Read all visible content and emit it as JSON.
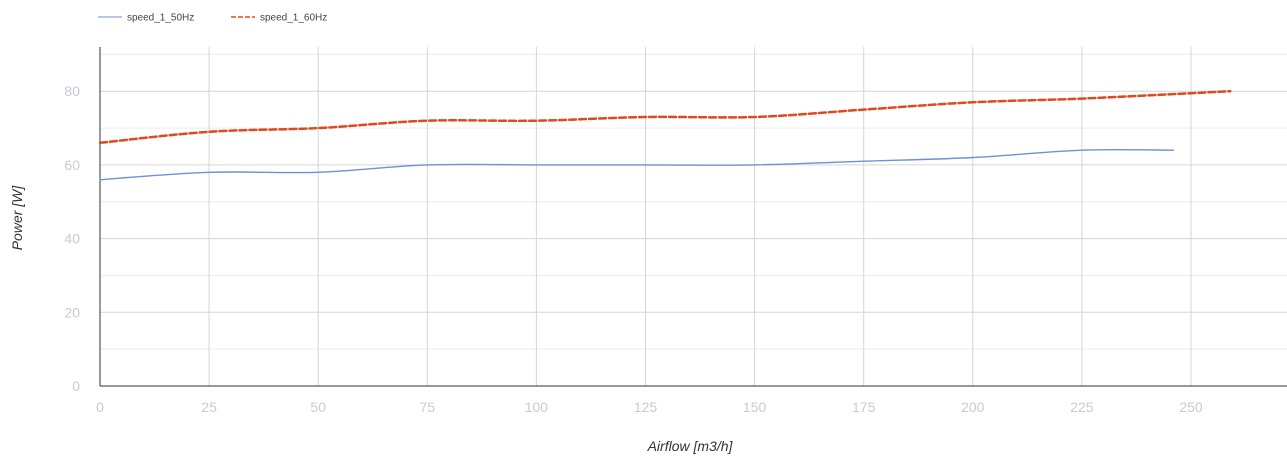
{
  "chart_data": {
    "type": "line",
    "title": "",
    "xlabel": "Airflow [m3/h]",
    "ylabel": "Power [W]",
    "xlim": [
      0,
      270
    ],
    "ylim": [
      0,
      92
    ],
    "x_ticks": [
      0,
      25,
      50,
      75,
      100,
      125,
      150,
      175,
      200,
      225,
      250
    ],
    "y_ticks": [
      0,
      20,
      40,
      60,
      80
    ],
    "grid": true,
    "legend_position": "top-left",
    "series": [
      {
        "name": "speed_1_50Hz",
        "color": "#6f8fd8",
        "style": "solid",
        "x": [
          0,
          25,
          50,
          75,
          100,
          125,
          150,
          175,
          200,
          225,
          246
        ],
        "values": [
          56,
          58,
          58,
          60,
          60,
          60,
          60,
          61,
          62,
          64,
          64
        ]
      },
      {
        "name": "speed_1_60Hz",
        "color": "#dc4a1f",
        "style": "dashed",
        "x": [
          0,
          25,
          50,
          75,
          100,
          125,
          150,
          175,
          200,
          225,
          259
        ],
        "values": [
          66,
          69,
          70,
          72,
          72,
          73,
          73,
          75,
          77,
          78,
          80
        ]
      }
    ]
  }
}
